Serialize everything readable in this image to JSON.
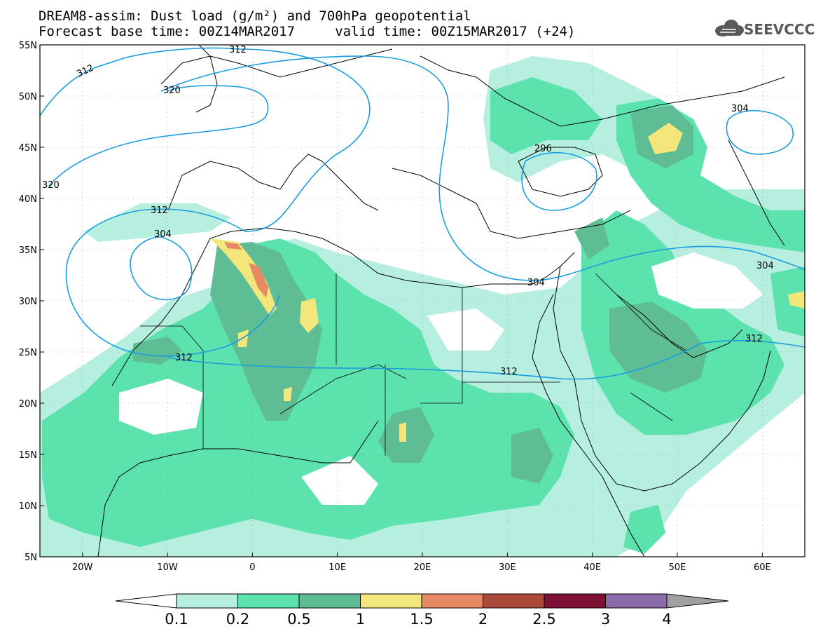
{
  "title": {
    "line1": "DREAM8-assim: Dust load (g/m²) and 700hPa geopotential",
    "line2": "Forecast base time: 00Z14MAR2017     valid time: 00Z15MAR2017 (+24)"
  },
  "logo": {
    "text": "SEEVCCC",
    "icon": "cloud-icon"
  },
  "axes": {
    "lat_labels": [
      "55N",
      "50N",
      "45N",
      "40N",
      "35N",
      "30N",
      "25N",
      "20N",
      "15N",
      "10N",
      "5N"
    ],
    "lon_labels": [
      "20W",
      "10W",
      "0",
      "10E",
      "20E",
      "30E",
      "40E",
      "50E",
      "60E"
    ],
    "lat_range": [
      5,
      55
    ],
    "lon_range": [
      -25,
      65
    ]
  },
  "contour_labels": [
    "312",
    "312",
    "320",
    "320",
    "312",
    "304",
    "312",
    "312",
    "296",
    "304",
    "304",
    "304",
    "312"
  ],
  "colorbar": {
    "levels": [
      "0.1",
      "0.2",
      "0.5",
      "1",
      "1.5",
      "2",
      "2.5",
      "3",
      "4"
    ],
    "colors": [
      "#ffffff",
      "#b6eee0",
      "#5ce3ad",
      "#5fbd93",
      "#f3e77b",
      "#e78a64",
      "#a94a3a",
      "#7e1035",
      "#8c6bab",
      "#a0a0a0"
    ]
  },
  "colors": {
    "contour": "#1a9de0",
    "coast": "#000000"
  }
}
